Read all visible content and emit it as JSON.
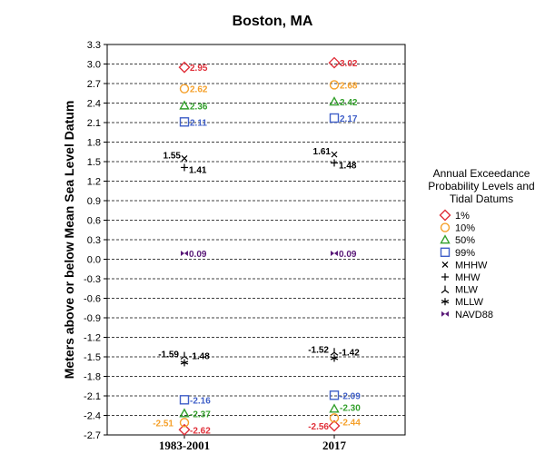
{
  "chart_data": {
    "type": "scatter",
    "title": "Boston, MA",
    "xlabel": "",
    "ylabel": "Meters above or below Mean Sea Level Datum",
    "categories": [
      "1983-2001",
      "2017"
    ],
    "ylim": [
      -2.7,
      3.3
    ],
    "yticks": [
      "3.3",
      "3.0",
      "2.7",
      "2.4",
      "2.1",
      "1.8",
      "1.5",
      "1.2",
      "0.9",
      "0.6",
      "0.3",
      "0.0",
      "-0.3",
      "-0.6",
      "-0.9",
      "-1.2",
      "-1.5",
      "-1.8",
      "-2.1",
      "-2.4",
      "-2.7"
    ],
    "grid": "horizontal dashed",
    "legend": {
      "title_lines": [
        "Annual Exceedance",
        "Probability Levels and",
        "Tidal Datums"
      ],
      "placement": "right"
    },
    "series": [
      {
        "name": "1%",
        "marker": "diamond",
        "color": "#e0303a",
        "points": [
          {
            "category": "1983-2001",
            "y": 2.95,
            "label": "2.95"
          },
          {
            "category": "2017",
            "y": 3.02,
            "label": "3.02"
          },
          {
            "category": "1983-2001",
            "y": -2.62,
            "label": "-2.62"
          },
          {
            "category": "2017",
            "y": -2.56,
            "label": "-2.56"
          }
        ]
      },
      {
        "name": "10%",
        "marker": "circle",
        "color": "#f5a02a",
        "points": [
          {
            "category": "1983-2001",
            "y": 2.62,
            "label": "2.62"
          },
          {
            "category": "2017",
            "y": 2.68,
            "label": "2.68"
          },
          {
            "category": "1983-2001",
            "y": -2.51,
            "label": "-2.51"
          },
          {
            "category": "2017",
            "y": -2.44,
            "label": "-2.44"
          }
        ]
      },
      {
        "name": "50%",
        "marker": "triangle",
        "color": "#33a02c",
        "points": [
          {
            "category": "1983-2001",
            "y": 2.36,
            "label": "2.36"
          },
          {
            "category": "2017",
            "y": 2.42,
            "label": "2.42"
          },
          {
            "category": "1983-2001",
            "y": -2.37,
            "label": "-2.37"
          },
          {
            "category": "2017",
            "y": -2.3,
            "label": "-2.30"
          }
        ]
      },
      {
        "name": "99%",
        "marker": "square",
        "color": "#3f5fc8",
        "points": [
          {
            "category": "1983-2001",
            "y": 2.11,
            "label": "2.11"
          },
          {
            "category": "2017",
            "y": 2.17,
            "label": "2.17"
          },
          {
            "category": "1983-2001",
            "y": -2.16,
            "label": "-2.16"
          },
          {
            "category": "2017",
            "y": -2.09,
            "label": "-2.09"
          }
        ]
      },
      {
        "name": "MHHW",
        "marker": "x",
        "color": "#000000",
        "points": [
          {
            "category": "1983-2001",
            "y": 1.55,
            "label": "1.55"
          },
          {
            "category": "2017",
            "y": 1.61,
            "label": "1.61"
          }
        ]
      },
      {
        "name": "MHW",
        "marker": "plus",
        "color": "#000000",
        "points": [
          {
            "category": "1983-2001",
            "y": 1.41,
            "label": "1.41"
          },
          {
            "category": "2017",
            "y": 1.48,
            "label": "1.48"
          }
        ]
      },
      {
        "name": "MLW",
        "marker": "tri",
        "color": "#000000",
        "points": [
          {
            "category": "1983-2001",
            "y": -1.48,
            "label": "-1.48"
          },
          {
            "category": "2017",
            "y": -1.42,
            "label": "-1.42"
          }
        ]
      },
      {
        "name": "MLLW",
        "marker": "star",
        "color": "#000000",
        "points": [
          {
            "category": "1983-2001",
            "y": -1.59,
            "label": "-1.59"
          },
          {
            "category": "2017",
            "y": -1.52,
            "label": "-1.52"
          }
        ]
      },
      {
        "name": "NAVD88",
        "marker": "bowtie",
        "color": "#5a1a78",
        "points": [
          {
            "category": "1983-2001",
            "y": 0.09,
            "label": "0.09"
          },
          {
            "category": "2017",
            "y": 0.09,
            "label": "0.09"
          }
        ]
      }
    ]
  }
}
